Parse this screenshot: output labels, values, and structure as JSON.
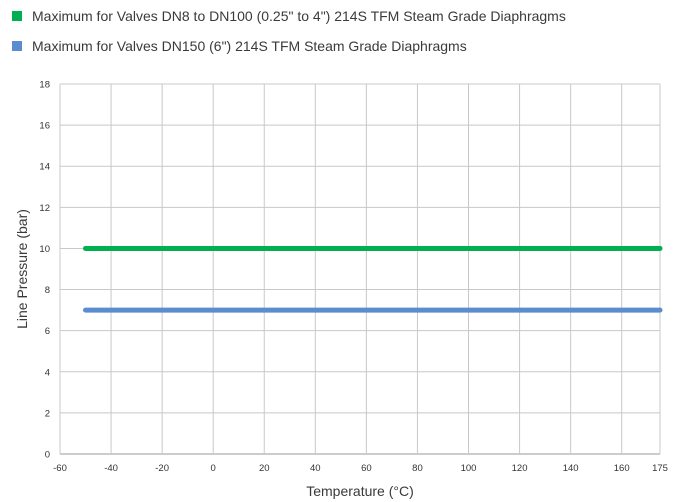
{
  "legend": {
    "items": [
      {
        "label": "Maximum for Valves DN8 to DN100 (0.25\" to 4\") 214S TFM Steam Grade Diaphragms",
        "color": "#00b050"
      },
      {
        "label": "Maximum for Valves DN150 (6\") 214S TFM Steam Grade Diaphragms",
        "color": "#5b8ccf"
      }
    ]
  },
  "chart_data": {
    "type": "line",
    "xlabel": "Temperature (°C)",
    "ylabel": "Line Pressure (bar)",
    "xlim": [
      -60,
      175
    ],
    "ylim": [
      0,
      18
    ],
    "xticks": [
      -60,
      -40,
      -20,
      0,
      20,
      40,
      60,
      80,
      100,
      120,
      140,
      160,
      175
    ],
    "yticks": [
      0,
      2,
      4,
      6,
      8,
      10,
      12,
      14,
      16,
      18
    ],
    "grid": true,
    "legend_position": "top-left",
    "series": [
      {
        "name": "Maximum for Valves DN8 to DN100 (0.25\" to 4\") 214S TFM Steam Grade Diaphragms",
        "color": "#00b050",
        "x": [
          -50,
          175
        ],
        "y": [
          10,
          10
        ]
      },
      {
        "name": "Maximum for Valves DN150 (6\") 214S TFM Steam Grade Diaphragms",
        "color": "#5b8ccf",
        "x": [
          -50,
          175
        ],
        "y": [
          7,
          7
        ]
      }
    ]
  }
}
